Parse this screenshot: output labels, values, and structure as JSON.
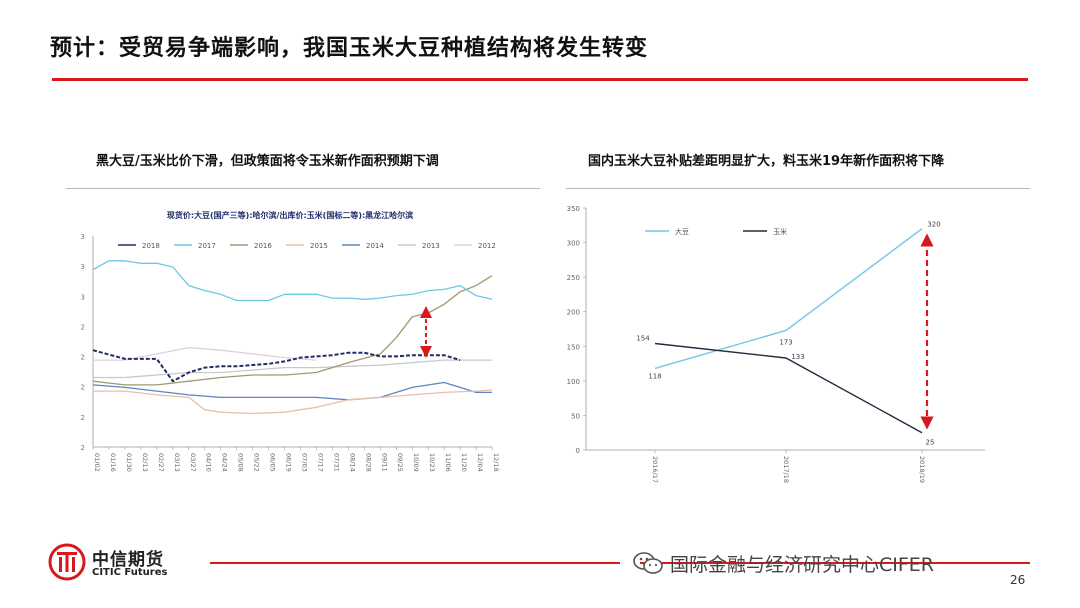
{
  "slide": {
    "title": "预计：受贸易争端影响，我国玉米大豆种植结构将发生转变",
    "page_number": "26",
    "accent_color": "#d7191c"
  },
  "footer": {
    "logo_cn": "中信期货",
    "logo_en": "CITIC Futures",
    "watermark": "国际金融与经济研究中心CIFER"
  },
  "chart_data": [
    {
      "type": "line",
      "subtitle": "黑大豆/玉米比价下滑，但政策面将令玉米新作面积预期下调",
      "title": "现货价:大豆(国产三等):哈尔滨/出库价:玉米(国标二等):黑龙江哈尔滨",
      "y_ticks": [
        "2",
        "2",
        "2",
        "2",
        "2",
        "3",
        "3",
        "3"
      ],
      "x_ticks": [
        "01/02",
        "01/16",
        "01/30",
        "02/13",
        "02/27",
        "03/13",
        "03/27",
        "04/10",
        "04/24",
        "05/08",
        "05/22",
        "06/05",
        "06/19",
        "07/03",
        "07/17",
        "07/31",
        "08/14",
        "08/28",
        "09/11",
        "09/25",
        "10/09",
        "10/23",
        "11/06",
        "11/20",
        "12/04",
        "12/18"
      ],
      "ylim": [
        1.8,
        3.5
      ],
      "legend_position": "top",
      "series": [
        {
          "name": "2018",
          "color": "#1f2d6b",
          "dashed": true,
          "x": [
            0,
            2,
            3,
            4,
            5,
            6,
            7,
            8,
            9,
            11,
            12,
            13,
            14,
            15,
            16,
            17,
            18,
            19,
            20,
            21,
            22,
            23
          ],
          "values": [
            2.58,
            2.51,
            2.51,
            2.51,
            2.33,
            2.4,
            2.44,
            2.45,
            2.45,
            2.47,
            2.49,
            2.52,
            2.53,
            2.54,
            2.56,
            2.56,
            2.53,
            2.53,
            2.54,
            2.54,
            2.54,
            2.5
          ]
        },
        {
          "name": "2017",
          "color": "#6fc7e6",
          "dashed": false,
          "x": [
            0,
            1,
            2,
            3,
            4,
            5,
            6,
            7,
            8,
            9,
            10,
            11,
            12,
            13,
            14,
            15,
            16,
            17,
            18,
            19,
            20,
            21,
            22,
            23,
            24,
            25
          ],
          "values": [
            3.23,
            3.3,
            3.3,
            3.28,
            3.28,
            3.25,
            3.1,
            3.06,
            3.03,
            2.98,
            2.98,
            2.98,
            3.03,
            3.03,
            3.03,
            3.0,
            3.0,
            2.99,
            3.0,
            3.02,
            3.03,
            3.06,
            3.07,
            3.1,
            3.02,
            2.99
          ]
        },
        {
          "name": "2016",
          "color": "#9c9c72",
          "dashed": false,
          "x": [
            0,
            2,
            4,
            6,
            8,
            10,
            12,
            14,
            16,
            18,
            19,
            20,
            21,
            22,
            23,
            24,
            25
          ],
          "values": [
            2.33,
            2.3,
            2.3,
            2.33,
            2.36,
            2.38,
            2.38,
            2.4,
            2.48,
            2.55,
            2.68,
            2.85,
            2.88,
            2.95,
            3.05,
            3.1,
            3.18
          ]
        },
        {
          "name": "2015",
          "color": "#e8bfa8",
          "dashed": false,
          "x": [
            0,
            2,
            4,
            6,
            7,
            8,
            10,
            12,
            14,
            16,
            18,
            20,
            22,
            24,
            25
          ],
          "values": [
            2.25,
            2.25,
            2.22,
            2.2,
            2.1,
            2.08,
            2.07,
            2.08,
            2.12,
            2.18,
            2.2,
            2.22,
            2.24,
            2.25,
            2.26
          ]
        },
        {
          "name": "2014",
          "color": "#5b86c0",
          "dashed": false,
          "x": [
            0,
            2,
            4,
            6,
            8,
            10,
            12,
            14,
            16,
            18,
            20,
            22,
            23,
            24,
            25
          ],
          "values": [
            2.3,
            2.28,
            2.25,
            2.22,
            2.2,
            2.2,
            2.2,
            2.2,
            2.18,
            2.2,
            2.28,
            2.32,
            2.28,
            2.24,
            2.24
          ]
        },
        {
          "name": "2013",
          "color": "#c9c9c9",
          "dashed": false,
          "x": [
            0,
            2,
            4,
            6,
            8,
            10,
            12,
            14,
            16,
            18,
            20,
            22,
            24,
            25
          ],
          "values": [
            2.36,
            2.36,
            2.38,
            2.4,
            2.4,
            2.42,
            2.44,
            2.44,
            2.45,
            2.46,
            2.48,
            2.5,
            2.5,
            2.5
          ]
        },
        {
          "name": "2012",
          "color": "#ddd0df",
          "dashed": false,
          "x": [
            0,
            2,
            4,
            6,
            8,
            10,
            12,
            14
          ],
          "values": [
            2.5,
            2.5,
            2.55,
            2.6,
            2.58,
            2.55,
            2.52,
            2.5
          ]
        }
      ]
    },
    {
      "type": "line",
      "subtitle": "国内玉米大豆补贴差距明显扩大，料玉米19年新作面积将下降",
      "categories": [
        "2016/17",
        "2017/18",
        "2018/19"
      ],
      "ylim": [
        0,
        350
      ],
      "y_ticks": [
        "0",
        "50",
        "100",
        "150",
        "200",
        "250",
        "300",
        "350"
      ],
      "legend_position": "top-left",
      "series": [
        {
          "name": "大豆",
          "color": "#6fc7e6",
          "values": [
            118,
            173,
            320
          ],
          "labels": [
            "118",
            "173",
            "320"
          ]
        },
        {
          "name": "玉米",
          "color": "#1f2d3f",
          "values": [
            154,
            133,
            25
          ],
          "labels": [
            "154",
            "133",
            "25"
          ]
        }
      ]
    }
  ]
}
